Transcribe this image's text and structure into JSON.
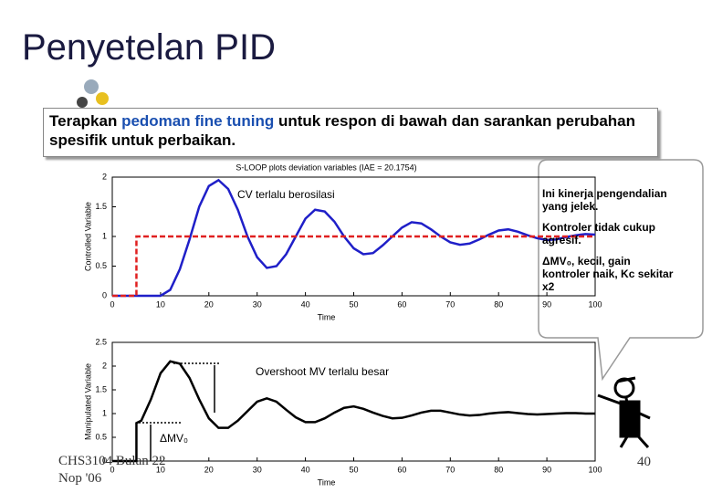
{
  "slide": {
    "title": "Penyetelan PID",
    "prompt": [
      "Terapkan ",
      "pedoman fine tuning",
      " untuk respon di bawah dan sarankan perubahan spesifik untuk perbaikan."
    ],
    "callout": [
      "Ini kinerja pengendalian yang jelek.",
      "Kontroler tidak cukup agresif.",
      "ΔMV₀, kecil, gain kontroler naik, Kc sekitar x2"
    ],
    "footer": [
      "CHS3104 Bulan 22",
      "Nop '06"
    ],
    "page": "40"
  },
  "chart_data": [
    {
      "type": "line",
      "title": "S-LOOP plots deviation variables (IAE = 20.1754)",
      "xlabel": "Time",
      "ylabel": "Controlled Variable",
      "annotation": "CV terlalu berosilasi",
      "xlim": [
        0,
        100
      ],
      "xticks": [
        0,
        10,
        20,
        30,
        40,
        50,
        60,
        70,
        80,
        90,
        100
      ],
      "ylim": [
        0,
        2
      ],
      "yticks": [
        0,
        0.5,
        1,
        1.5,
        2
      ],
      "x": [
        0,
        2,
        4,
        6,
        8,
        10,
        12,
        14,
        16,
        18,
        20,
        22,
        24,
        26,
        28,
        30,
        32,
        34,
        36,
        38,
        40,
        42,
        44,
        46,
        48,
        50,
        52,
        54,
        56,
        58,
        60,
        62,
        64,
        66,
        68,
        70,
        72,
        74,
        76,
        78,
        80,
        82,
        84,
        86,
        88,
        90,
        92,
        94,
        96,
        98,
        100
      ],
      "series": [
        {
          "color": "#1f1fc8",
          "values": [
            0,
            0,
            0,
            0,
            0,
            0,
            0.1,
            0.45,
            0.95,
            1.5,
            1.85,
            1.95,
            1.8,
            1.45,
            1.0,
            0.65,
            0.47,
            0.5,
            0.7,
            1.0,
            1.3,
            1.45,
            1.42,
            1.25,
            1.0,
            0.8,
            0.7,
            0.72,
            0.85,
            1.0,
            1.15,
            1.24,
            1.22,
            1.12,
            1.0,
            0.9,
            0.86,
            0.88,
            0.95,
            1.03,
            1.1,
            1.12,
            1.08,
            1.02,
            0.97,
            0.94,
            0.95,
            0.99,
            1.02,
            1.04,
            1.03
          ]
        },
        {
          "color": "#e02020",
          "dashed": true,
          "x": [
            0,
            5,
            5,
            100
          ],
          "values": [
            0,
            0,
            1,
            1
          ]
        }
      ]
    },
    {
      "type": "line",
      "xlabel": "Time",
      "ylabel": "Manipulated Variable",
      "annotation": "Overshoot MV terlalu besar",
      "step_label": "ΔMV₀",
      "xlim": [
        0,
        100
      ],
      "xticks": [
        0,
        10,
        20,
        30,
        40,
        50,
        60,
        70,
        80,
        90,
        100
      ],
      "ylim": [
        0,
        2.5
      ],
      "yticks": [
        0,
        0.5,
        1,
        1.5,
        2,
        2.5
      ],
      "series": [
        {
          "color": "#000000",
          "x": [
            0,
            5,
            5,
            6,
            8,
            10,
            12,
            14,
            16,
            18,
            20,
            22,
            24,
            26,
            28,
            30,
            32,
            34,
            36,
            38,
            40,
            42,
            44,
            46,
            48,
            50,
            52,
            54,
            56,
            58,
            60,
            62,
            64,
            66,
            68,
            70,
            72,
            74,
            76,
            78,
            80,
            82,
            84,
            86,
            88,
            90,
            92,
            94,
            96,
            98,
            100
          ],
          "values": [
            0,
            0,
            0.8,
            0.85,
            1.3,
            1.85,
            2.1,
            2.05,
            1.75,
            1.3,
            0.9,
            0.7,
            0.7,
            0.85,
            1.05,
            1.25,
            1.32,
            1.25,
            1.08,
            0.92,
            0.82,
            0.82,
            0.9,
            1.02,
            1.12,
            1.15,
            1.1,
            1.02,
            0.95,
            0.9,
            0.91,
            0.96,
            1.02,
            1.06,
            1.06,
            1.02,
            0.98,
            0.96,
            0.97,
            1.0,
            1.02,
            1.03,
            1.01,
            0.99,
            0.98,
            0.99,
            1.0,
            1.01,
            1.01,
            1.0,
            1.0
          ]
        }
      ]
    }
  ]
}
